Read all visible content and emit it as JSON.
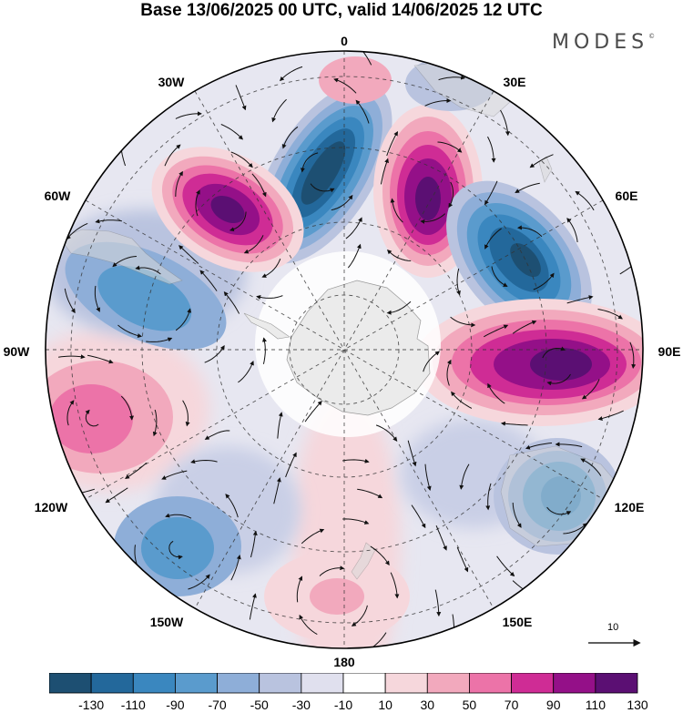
{
  "title": "Base 13/06/2025 00 UTC, valid 14/06/2025 12 UTC",
  "brand": "MODES",
  "brand_mark": "©",
  "longitude_labels": {
    "lon_0": "0",
    "lon_30e": "30E",
    "lon_60e": "60E",
    "lon_90e": "90E",
    "lon_120e": "120E",
    "lon_150e": "150E",
    "lon_180": "180",
    "lon_150w": "150W",
    "lon_120w": "120W",
    "lon_90w": "90W",
    "lon_60w": "60W",
    "lon_30w": "30W"
  },
  "vector_scale": {
    "label": "10",
    "icon": "arrow-right-icon"
  },
  "colorbar": {
    "ticks": [
      "-130",
      "-110",
      "-90",
      "-70",
      "-50",
      "-30",
      "-10",
      "10",
      "30",
      "50",
      "70",
      "90",
      "110",
      "130"
    ],
    "colors": [
      "#1d4f72",
      "#23689b",
      "#3a87bf",
      "#5a9bcd",
      "#8eaed8",
      "#b9c3df",
      "#e0e0ee",
      "#ffffff",
      "#f6d7dc",
      "#f2a9bd",
      "#ec73a8",
      "#cf2c95",
      "#941088",
      "#5b0f73"
    ]
  },
  "anomaly_centers": [
    {
      "sign": "negative",
      "value": -130,
      "lon": "10W",
      "ring": "mid"
    },
    {
      "sign": "positive",
      "value": 110,
      "lon": "45W",
      "ring": "mid"
    },
    {
      "sign": "positive",
      "value": 110,
      "lon": "20E",
      "ring": "mid"
    },
    {
      "sign": "negative",
      "value": -110,
      "lon": "55E",
      "ring": "mid"
    },
    {
      "sign": "positive",
      "value": 130,
      "lon": "90E",
      "ring": "mid"
    },
    {
      "sign": "negative",
      "value": -70,
      "lon": "120E",
      "ring": "outer"
    },
    {
      "sign": "negative",
      "value": -50,
      "lon": "70W",
      "ring": "mid"
    },
    {
      "sign": "positive",
      "value": 70,
      "lon": "100W",
      "ring": "outer"
    },
    {
      "sign": "negative",
      "value": -70,
      "lon": "140W",
      "ring": "outer"
    },
    {
      "sign": "positive",
      "value": 50,
      "lon": "175E",
      "ring": "outer"
    }
  ]
}
